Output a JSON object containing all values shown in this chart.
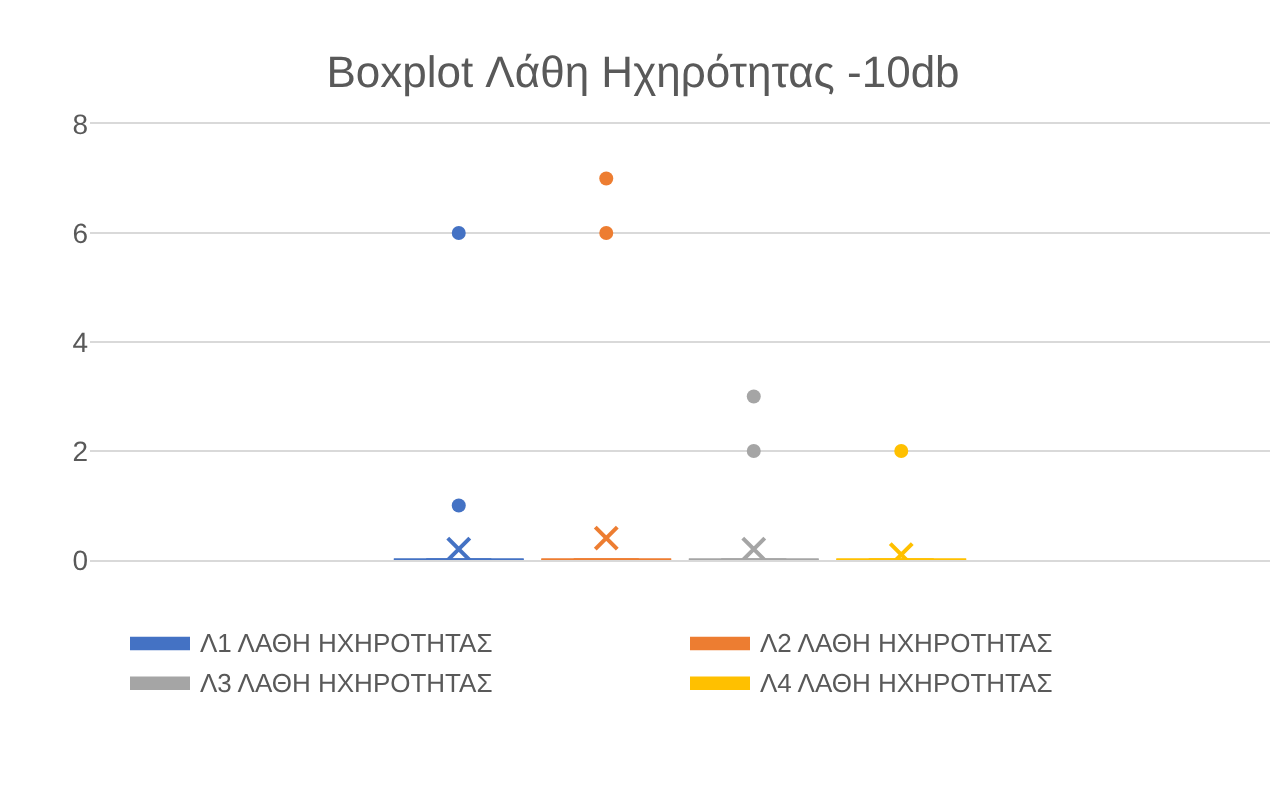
{
  "chart_data": {
    "type": "box",
    "title": "Boxplot Λάθη Ηχηρότητας -10db",
    "categories": [
      null
    ],
    "series": [
      {
        "name": "Λ1 ΛΑΘΗ ΗΧΗΡΟΤΗΤΑΣ",
        "color": "#4472c4",
        "boxes": [
          {
            "low": 0,
            "q1": 0,
            "median": 0,
            "q3": 0,
            "high": 0,
            "mean": 0.2,
            "outliers": [
              1,
              6
            ]
          }
        ]
      },
      {
        "name": "Λ2 ΛΑΘΗ ΗΧΗΡΟΤΗΤΑΣ",
        "color": "#ed7d31",
        "boxes": [
          {
            "low": 0,
            "q1": 0,
            "median": 0,
            "q3": 0,
            "high": 0,
            "mean": 0.4,
            "outliers": [
              6,
              7
            ]
          }
        ]
      },
      {
        "name": "Λ3 ΛΑΘΗ ΗΧΗΡΟΤΗΤΑΣ",
        "color": "#a5a5a5",
        "boxes": [
          {
            "low": 0,
            "q1": 0,
            "median": 0,
            "q3": 0,
            "high": 0,
            "mean": 0.2,
            "outliers": [
              2,
              3
            ]
          }
        ]
      },
      {
        "name": "Λ4 ΛΑΘΗ ΗΧΗΡΟΤΗΤΑΣ",
        "color": "#ffc000",
        "boxes": [
          {
            "low": 0,
            "q1": 0,
            "median": 0,
            "q3": 0,
            "high": 0,
            "mean": 0.1,
            "outliers": [
              2
            ]
          }
        ]
      }
    ],
    "ylim": [
      0,
      8
    ],
    "yticks": [
      0,
      2,
      4,
      6,
      8
    ],
    "grid": "y",
    "legend": "bottom",
    "tick_labels": "y"
  }
}
